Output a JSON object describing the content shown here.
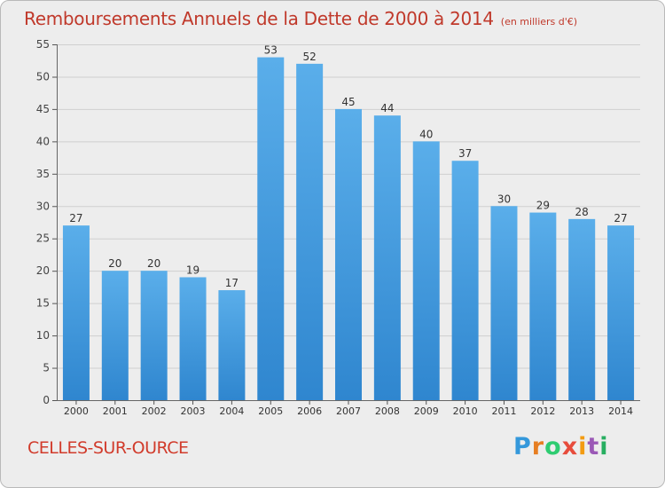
{
  "chart_data": {
    "type": "bar",
    "title": "Remboursements Annuels de la Dette de 2000 à 2014",
    "unit_note": "(en milliers d'€)",
    "categories": [
      "2000",
      "2001",
      "2002",
      "2003",
      "2004",
      "2005",
      "2006",
      "2007",
      "2008",
      "2009",
      "2010",
      "2011",
      "2012",
      "2013",
      "2014"
    ],
    "values": [
      27,
      20,
      20,
      19,
      17,
      53,
      52,
      45,
      44,
      40,
      37,
      30,
      29,
      28,
      27
    ],
    "ylim": [
      0,
      55
    ],
    "yticks": [
      0,
      5,
      10,
      15,
      20,
      25,
      30,
      35,
      40,
      45,
      50,
      55
    ],
    "grid": true,
    "bar_color": "#4aa3e6",
    "xlabel": "",
    "ylabel": ""
  },
  "commune": "CELLES-SUR-OURCE",
  "logo": {
    "p": "P",
    "r": "r",
    "o": "o",
    "x": "x",
    "i": "i",
    "t": "t",
    "i2": "i"
  },
  "colors": {
    "title": "#c0392b",
    "commune": "#d13b2b",
    "background": "#ededed"
  }
}
